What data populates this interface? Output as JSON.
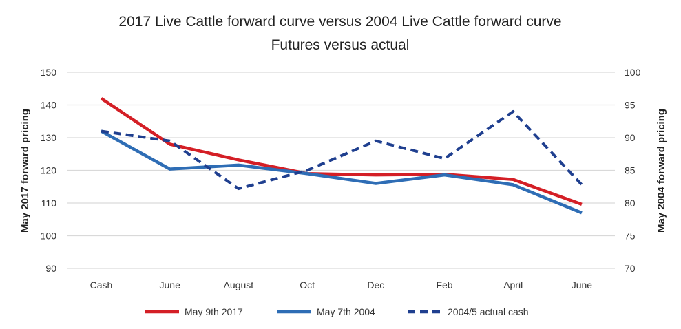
{
  "chart_data": {
    "type": "line",
    "title": "2017 Live Cattle forward curve versus 2004 Live Cattle forward curve",
    "subtitle": "Futures versus actual",
    "categories": [
      "Cash",
      "June",
      "August",
      "Oct",
      "Dec",
      "Feb",
      "April",
      "June"
    ],
    "ylabel": "May 2017 forward pricing",
    "ylabel_right": "May 2004 forward pricing",
    "ylim": [
      90,
      150
    ],
    "yticks": [
      90,
      100,
      110,
      120,
      130,
      140,
      150
    ],
    "ylim_right": [
      70,
      100
    ],
    "yticks_right": [
      70,
      75,
      80,
      85,
      90,
      95,
      100
    ],
    "grid": true,
    "legend_position": "bottom",
    "series": [
      {
        "name": "May 9th 2017",
        "axis": "left",
        "color": "#d41f26",
        "style": "solid",
        "values": [
          142,
          128,
          123.2,
          119,
          118.6,
          118.8,
          117.2,
          109.6
        ]
      },
      {
        "name": "May 7th 2004",
        "axis": "right",
        "color": "#2e6db5",
        "style": "solid",
        "values": [
          91,
          85.2,
          85.8,
          84.5,
          83,
          84.3,
          82.8,
          78.5
        ]
      },
      {
        "name": "2004/5 actual cash",
        "axis": "right",
        "color": "#1f3f8f",
        "style": "dashed",
        "values": [
          91,
          89.5,
          82.2,
          85,
          89.5,
          86.8,
          94,
          82.8
        ]
      }
    ]
  }
}
